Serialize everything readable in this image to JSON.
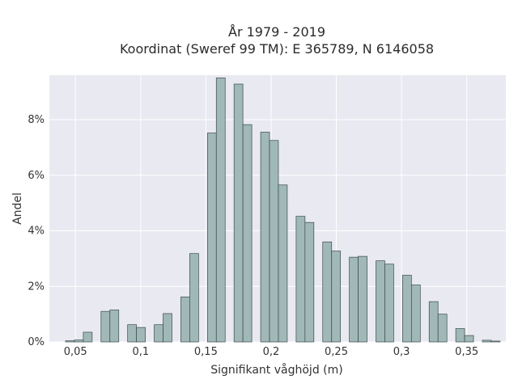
{
  "colors": {
    "plot_bg": "#e9e9f1",
    "grid": "#ffffff",
    "bar_fill": "#a1b8b8",
    "bar_stroke": "#3b4a4a",
    "text": "#333333"
  },
  "chart_data": {
    "type": "bar",
    "title_line1": "År 1979 - 2019",
    "title_line2": "Koordinat (Sweref 99 TM): E 365789, N 6146058",
    "xlabel": "Signifikant våghöjd (m)",
    "ylabel": "Andel",
    "xlim": [
      0.03,
      0.38
    ],
    "ylim": [
      0,
      9.6
    ],
    "grid": true,
    "x_ticks": [
      {
        "value": 0.05,
        "label": "0,05"
      },
      {
        "value": 0.1,
        "label": "0,1"
      },
      {
        "value": 0.15,
        "label": "0,15"
      },
      {
        "value": 0.2,
        "label": "0,2"
      },
      {
        "value": 0.25,
        "label": "0,25"
      },
      {
        "value": 0.3,
        "label": "0,3"
      },
      {
        "value": 0.35,
        "label": "0,35"
      }
    ],
    "y_ticks": [
      {
        "value": 0,
        "label": "0%"
      },
      {
        "value": 2,
        "label": "2%"
      },
      {
        "value": 4,
        "label": "4%"
      },
      {
        "value": 6,
        "label": "6%"
      },
      {
        "value": 8,
        "label": "8%"
      }
    ],
    "bin_width": 0.0068,
    "bins": [
      {
        "x": 0.0424,
        "y": 0.04
      },
      {
        "x": 0.0492,
        "y": 0.07
      },
      {
        "x": 0.056,
        "y": 0.35
      },
      {
        "x": 0.0696,
        "y": 1.1
      },
      {
        "x": 0.0764,
        "y": 1.15
      },
      {
        "x": 0.09,
        "y": 0.62
      },
      {
        "x": 0.0968,
        "y": 0.52
      },
      {
        "x": 0.1104,
        "y": 0.62
      },
      {
        "x": 0.1172,
        "y": 1.02
      },
      {
        "x": 0.1308,
        "y": 1.62
      },
      {
        "x": 0.1376,
        "y": 3.18
      },
      {
        "x": 0.1512,
        "y": 7.52
      },
      {
        "x": 0.158,
        "y": 9.5
      },
      {
        "x": 0.1716,
        "y": 9.28
      },
      {
        "x": 0.1784,
        "y": 7.82
      },
      {
        "x": 0.192,
        "y": 7.55
      },
      {
        "x": 0.1988,
        "y": 7.25
      },
      {
        "x": 0.2056,
        "y": 5.65
      },
      {
        "x": 0.2192,
        "y": 4.52
      },
      {
        "x": 0.226,
        "y": 4.3
      },
      {
        "x": 0.2396,
        "y": 3.6
      },
      {
        "x": 0.2464,
        "y": 3.27
      },
      {
        "x": 0.26,
        "y": 3.05
      },
      {
        "x": 0.2668,
        "y": 3.08
      },
      {
        "x": 0.2804,
        "y": 2.92
      },
      {
        "x": 0.2872,
        "y": 2.8
      },
      {
        "x": 0.3008,
        "y": 2.4
      },
      {
        "x": 0.3076,
        "y": 2.05
      },
      {
        "x": 0.3212,
        "y": 1.45
      },
      {
        "x": 0.328,
        "y": 1.0
      },
      {
        "x": 0.3416,
        "y": 0.48
      },
      {
        "x": 0.3484,
        "y": 0.23
      },
      {
        "x": 0.362,
        "y": 0.06
      },
      {
        "x": 0.3688,
        "y": 0.03
      }
    ]
  }
}
